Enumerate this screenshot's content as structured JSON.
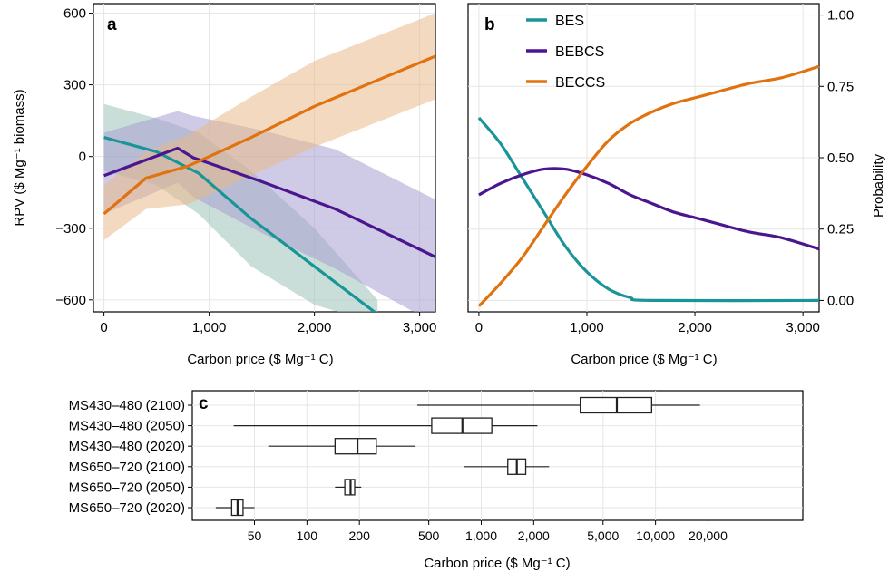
{
  "panels": {
    "a": {
      "letter": "a",
      "ylabel": "RPV ($ Mg⁻¹ biomass)",
      "xlabel": "Carbon price ($ Mg⁻¹ C)",
      "xticks": [
        0,
        1000,
        2000,
        3000
      ],
      "xtick_labels": [
        "0",
        "1,000",
        "2,000",
        "3,000"
      ],
      "yticks": [
        -600,
        -300,
        0,
        300,
        600
      ],
      "ytick_labels": [
        "−600",
        "−300",
        "0",
        "300",
        "600"
      ]
    },
    "b": {
      "letter": "b",
      "ylabel_right": "Probability",
      "xlabel": "Carbon price ($ Mg⁻¹ C)",
      "xticks": [
        0,
        1000,
        2000,
        3000
      ],
      "xtick_labels": [
        "0",
        "1,000",
        "2,000",
        "3,000"
      ],
      "yticks": [
        0,
        0.25,
        0.5,
        0.75,
        1.0
      ],
      "ytick_labels": [
        "0.00",
        "0.25",
        "0.50",
        "0.75",
        "1.00"
      ]
    },
    "c": {
      "letter": "c",
      "xlabel": "Carbon price ($ Mg⁻¹ C)",
      "xticks": [
        50,
        100,
        200,
        500,
        1000,
        2000,
        5000,
        10000,
        20000
      ],
      "xtick_labels": [
        "50",
        "100",
        "200",
        "500",
        "1,000",
        "2,000",
        "5,000",
        "10,000",
        "20,000"
      ]
    }
  },
  "colors": {
    "BES": "#1a9597",
    "BEBCS": "#4b1590",
    "BECCS": "#e0720f",
    "band_BES": "#9cc2b8",
    "band_BEBCS": "#a89fd0",
    "band_BECCS": "#eab98b",
    "grid": "#e6e6e6"
  },
  "chart_data": [
    {
      "panel": "a",
      "type": "line",
      "xlabel": "Carbon price ($ Mg⁻¹ C)",
      "ylabel": "RPV ($ Mg⁻¹ biomass)",
      "xlim": [
        -100,
        3150
      ],
      "ylim": [
        -650,
        640
      ],
      "grid": true,
      "series": [
        {
          "name": "BES",
          "x": [
            0,
            500,
            900,
            1400,
            2000,
            2600
          ],
          "values": [
            80,
            20,
            -70,
            -260,
            -460,
            -660
          ],
          "lower": [
            -60,
            -120,
            -240,
            -460,
            -620,
            -700
          ],
          "upper": [
            220,
            160,
            100,
            -60,
            -300,
            -600
          ]
        },
        {
          "name": "BEBCS",
          "x": [
            0,
            700,
            850,
            1500,
            2200,
            3150
          ],
          "values": [
            -80,
            35,
            -5,
            -105,
            -220,
            -420
          ],
          "lower": [
            -240,
            -110,
            -170,
            -320,
            -470,
            -700
          ],
          "upper": [
            100,
            190,
            170,
            110,
            30,
            -180
          ]
        },
        {
          "name": "BECCS",
          "x": [
            0,
            400,
            800,
            1400,
            2000,
            3150
          ],
          "values": [
            -240,
            -90,
            -40,
            80,
            210,
            420
          ],
          "lower": [
            -350,
            -220,
            -200,
            -80,
            40,
            240
          ],
          "upper": [
            -120,
            20,
            90,
            250,
            400,
            600
          ]
        }
      ]
    },
    {
      "panel": "b",
      "type": "line",
      "xlabel": "Carbon price ($ Mg⁻¹ C)",
      "ylabel": "Probability",
      "xlim": [
        -100,
        3150
      ],
      "ylim": [
        -0.04,
        1.04
      ],
      "grid": true,
      "legend": "top-left",
      "series": [
        {
          "name": "BES",
          "x": [
            0,
            200,
            400,
            600,
            800,
            1000,
            1200,
            1400,
            1600,
            3150
          ],
          "values": [
            0.64,
            0.55,
            0.43,
            0.31,
            0.19,
            0.1,
            0.04,
            0.01,
            0.0,
            0.0
          ]
        },
        {
          "name": "BEBCS",
          "x": [
            0,
            200,
            400,
            600,
            800,
            1000,
            1200,
            1400,
            1600,
            1800,
            2000,
            2200,
            2500,
            2800,
            3150
          ],
          "values": [
            0.37,
            0.41,
            0.44,
            0.46,
            0.46,
            0.44,
            0.41,
            0.37,
            0.34,
            0.31,
            0.29,
            0.27,
            0.24,
            0.22,
            0.18
          ],
          "note": ""
        },
        {
          "name": "BECCS",
          "x": [
            0,
            200,
            400,
            600,
            800,
            1000,
            1200,
            1400,
            1600,
            1800,
            2000,
            2200,
            2500,
            2800,
            3150
          ],
          "values": [
            -0.02,
            0.06,
            0.15,
            0.26,
            0.37,
            0.47,
            0.56,
            0.62,
            0.66,
            0.69,
            0.71,
            0.73,
            0.76,
            0.78,
            0.82
          ]
        }
      ]
    },
    {
      "panel": "c",
      "type": "box",
      "xscale": "log",
      "xlabel": "Carbon price ($ Mg⁻¹ C)",
      "xlim": [
        22,
        70000
      ],
      "categories": [
        "MS430–480 (2100)",
        "MS430–480 (2050)",
        "MS430–480 (2020)",
        "MS650–720 (2100)",
        "MS650–720 (2050)",
        "MS650–720 (2020)"
      ],
      "boxes": [
        {
          "label": "MS430–480 (2100)",
          "min": 430,
          "q1": 3700,
          "median": 6000,
          "q3": 9500,
          "max": 18000
        },
        {
          "label": "MS430–480 (2050)",
          "min": 38,
          "q1": 520,
          "median": 780,
          "q3": 1150,
          "max": 2100
        },
        {
          "label": "MS430–480 (2020)",
          "min": 60,
          "q1": 145,
          "median": 195,
          "q3": 250,
          "max": 420
        },
        {
          "label": "MS650–720 (2100)",
          "min": 800,
          "q1": 1420,
          "median": 1600,
          "q3": 1800,
          "max": 2450
        },
        {
          "label": "MS650–720 (2050)",
          "min": 145,
          "q1": 165,
          "median": 178,
          "q3": 188,
          "max": 205
        },
        {
          "label": "MS650–720 (2020)",
          "min": 30,
          "q1": 37,
          "median": 40,
          "q3": 43,
          "max": 50
        }
      ]
    }
  ]
}
